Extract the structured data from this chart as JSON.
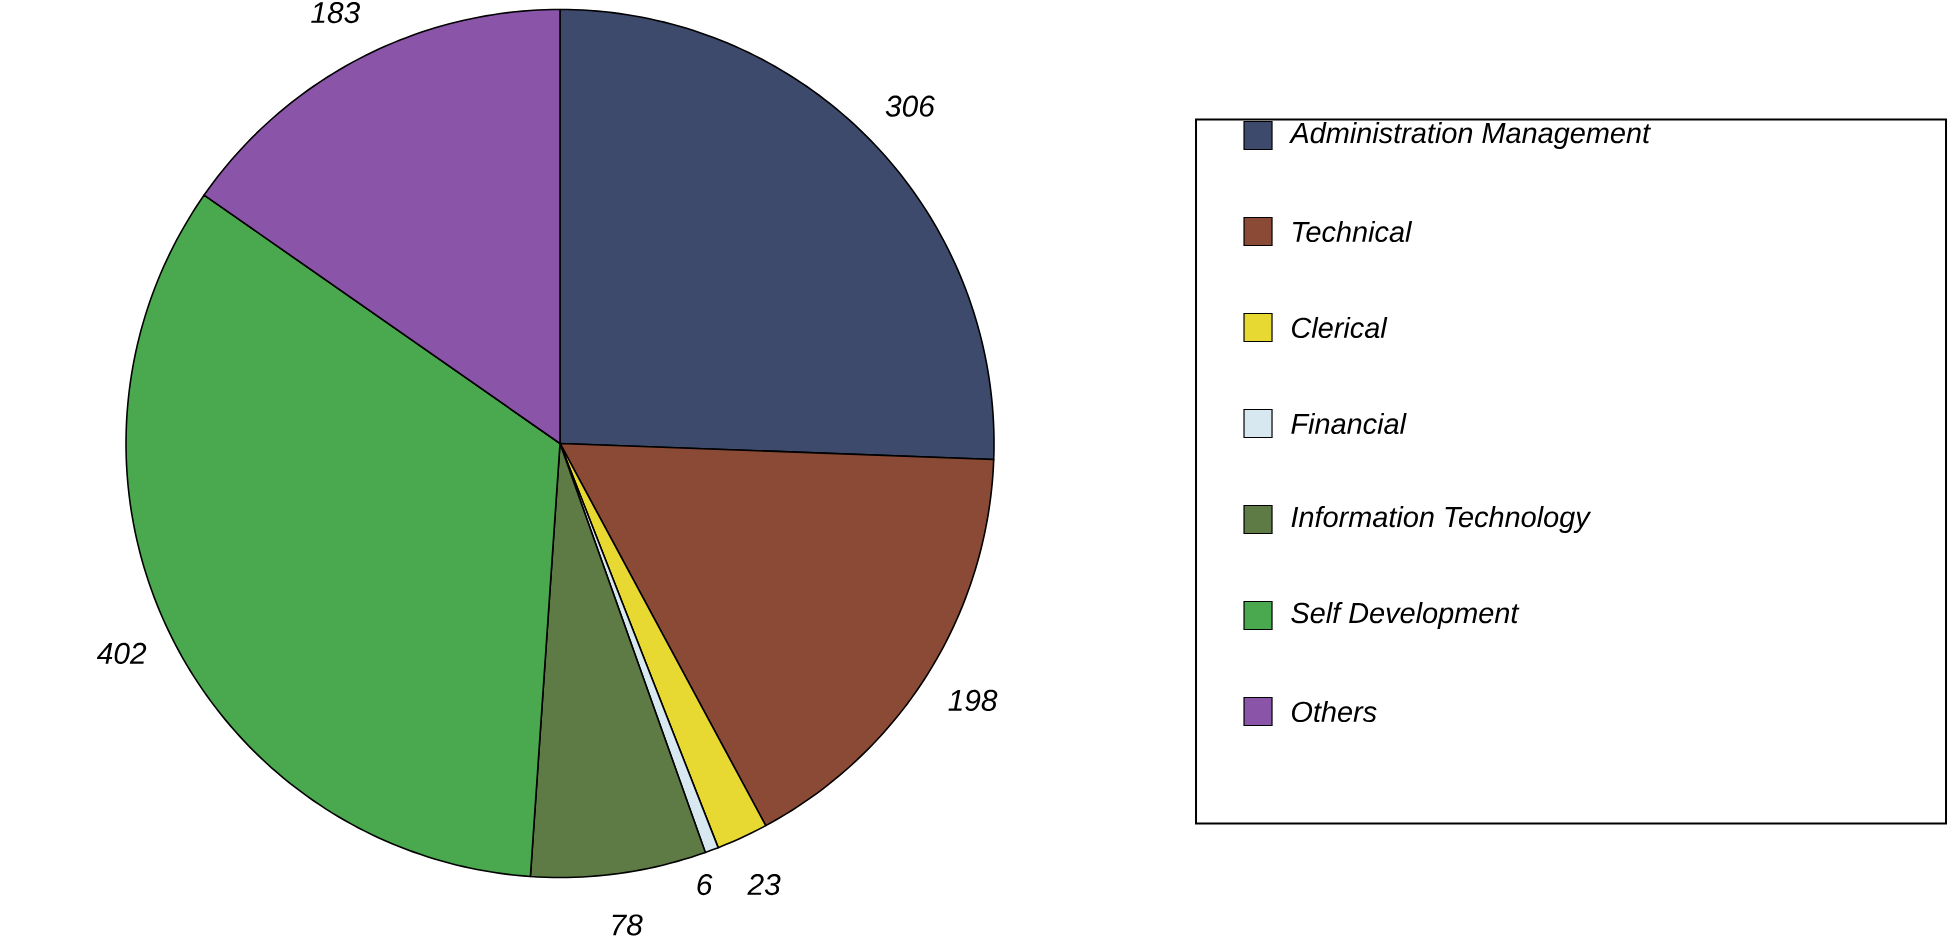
{
  "chart_data": {
    "type": "pie",
    "categories": [
      "Administration Management",
      "Technical",
      "Clerical",
      "Financial",
      "Information Technology",
      "Self Development",
      "Others"
    ],
    "values": [
      306,
      198,
      23,
      6,
      78,
      402,
      183
    ],
    "colors": [
      "#3d4a6b",
      "#8b4a35",
      "#e8d832",
      "#d8e8f0",
      "#5e7a45",
      "#4aa84f",
      "#8a55a8"
    ],
    "data_labels": true,
    "legend": "right"
  }
}
